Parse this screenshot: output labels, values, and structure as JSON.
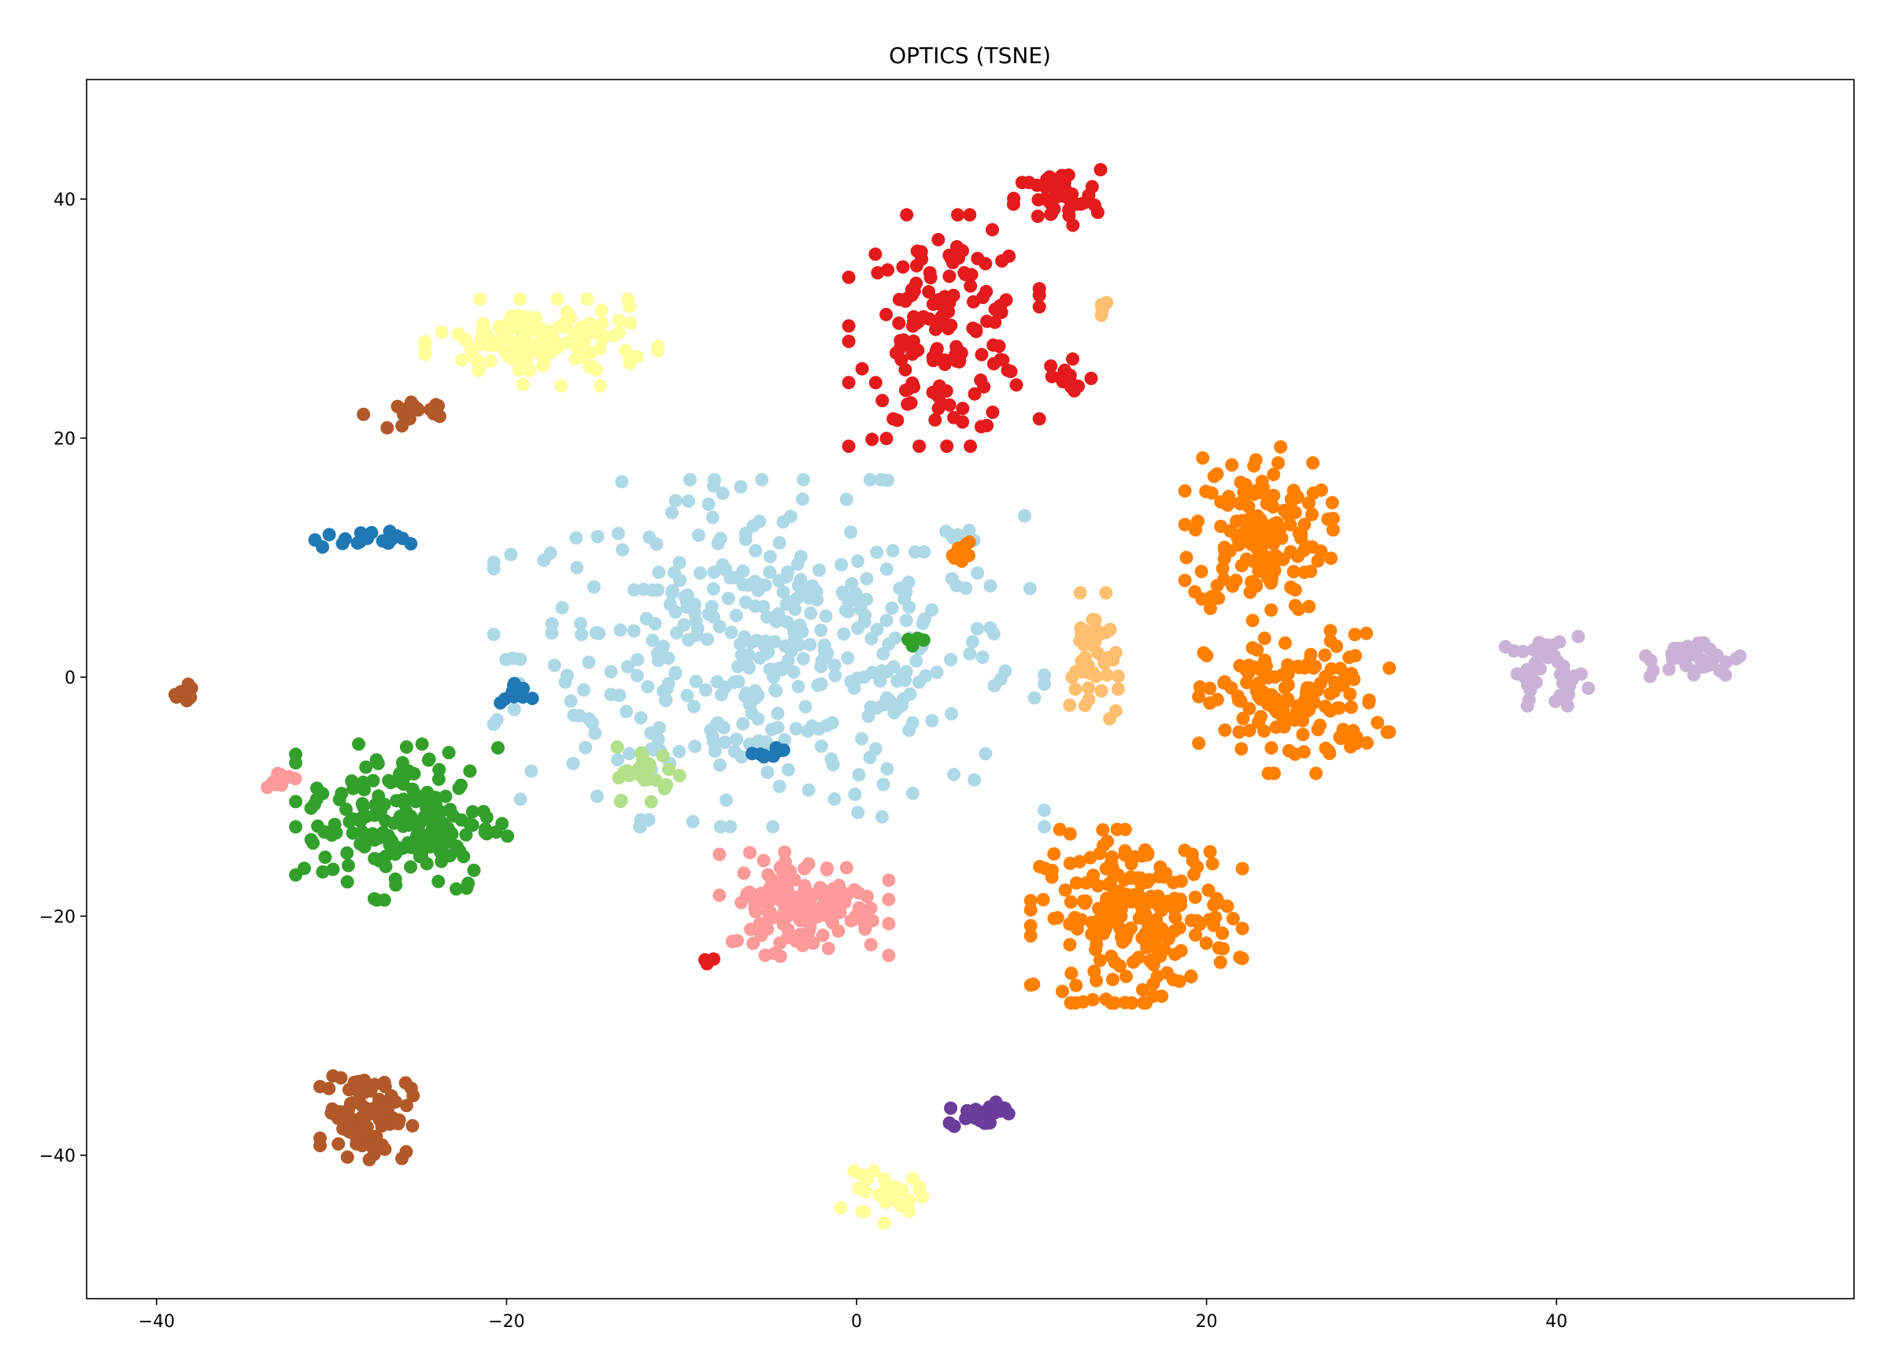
{
  "chart_data": {
    "type": "scatter",
    "title": "OPTICS (TSNE)",
    "xlabel": "",
    "ylabel": "",
    "xlim": [
      -44,
      57
    ],
    "ylim": [
      -52,
      50
    ],
    "xticks": [
      -40,
      -20,
      0,
      20,
      40
    ],
    "yticks": [
      -40,
      -20,
      0,
      20,
      40
    ],
    "grid": false,
    "legend": "none",
    "clusters": [
      {
        "color": "#add8e6",
        "center": [
          -5,
          2
        ],
        "spread": [
          13,
          12
        ],
        "count": 420
      },
      {
        "color": "#e41a1c",
        "center": [
          5,
          29
        ],
        "spread": [
          4.5,
          8
        ],
        "count": 150
      },
      {
        "color": "#e41a1c",
        "center": [
          11.5,
          40
        ],
        "spread": [
          2.2,
          2.2
        ],
        "count": 45
      },
      {
        "color": "#e41a1c",
        "center": [
          12,
          25
        ],
        "spread": [
          1.5,
          2.2
        ],
        "count": 14
      },
      {
        "color": "#e41a1c",
        "center": [
          -8,
          -23.8
        ],
        "spread": [
          1.2,
          0.4
        ],
        "count": 3
      },
      {
        "color": "#ff7f00",
        "center": [
          23,
          12
        ],
        "spread": [
          3.5,
          6
        ],
        "count": 160
      },
      {
        "color": "#ff7f00",
        "center": [
          25,
          -2
        ],
        "spread": [
          4.5,
          5
        ],
        "count": 150
      },
      {
        "color": "#ff7f00",
        "center": [
          16,
          -20
        ],
        "spread": [
          5,
          6
        ],
        "count": 230
      },
      {
        "color": "#ff7f00",
        "center": [
          6,
          10.5
        ],
        "spread": [
          0.7,
          1
        ],
        "count": 8
      },
      {
        "color": "#fdbf6f",
        "center": [
          13.5,
          1
        ],
        "spread": [
          1.2,
          5
        ],
        "count": 45
      },
      {
        "color": "#fdbf6f",
        "center": [
          14,
          31
        ],
        "spread": [
          0.6,
          0.6
        ],
        "count": 4
      },
      {
        "color": "#ffff99",
        "center": [
          -18,
          28
        ],
        "spread": [
          5.5,
          3
        ],
        "count": 130
      },
      {
        "color": "#ffff99",
        "center": [
          1.5,
          -43.5
        ],
        "spread": [
          2,
          1.8
        ],
        "count": 28
      },
      {
        "color": "#b15928",
        "center": [
          -28,
          -36.5
        ],
        "spread": [
          2.2,
          3.2
        ],
        "count": 100
      },
      {
        "color": "#b15928",
        "center": [
          -26,
          22
        ],
        "spread": [
          1.8,
          1.2
        ],
        "count": 18
      },
      {
        "color": "#b15928",
        "center": [
          -38.5,
          -1.5
        ],
        "spread": [
          0.8,
          0.8
        ],
        "count": 14
      },
      {
        "color": "#1f78b4",
        "center": [
          -28.5,
          11.5
        ],
        "spread": [
          2.5,
          0.6
        ],
        "count": 18
      },
      {
        "color": "#1f78b4",
        "center": [
          -19.5,
          -1.5
        ],
        "spread": [
          0.8,
          1.2
        ],
        "count": 12
      },
      {
        "color": "#1f78b4",
        "center": [
          -5,
          -6.3
        ],
        "spread": [
          0.8,
          0.6
        ],
        "count": 8
      },
      {
        "color": "#33a02c",
        "center": [
          -26,
          -12
        ],
        "spread": [
          5,
          5.5
        ],
        "count": 190
      },
      {
        "color": "#33a02c",
        "center": [
          3.5,
          3
        ],
        "spread": [
          0.5,
          0.5
        ],
        "count": 4
      },
      {
        "color": "#b2df8a",
        "center": [
          -12,
          -8
        ],
        "spread": [
          1.6,
          2
        ],
        "count": 28
      },
      {
        "color": "#fb9a99",
        "center": [
          -3,
          -19
        ],
        "spread": [
          4,
          3.6
        ],
        "count": 150
      },
      {
        "color": "#fb9a99",
        "center": [
          -33,
          -8.5
        ],
        "spread": [
          0.8,
          0.6
        ],
        "count": 18
      },
      {
        "color": "#6a3d9a",
        "center": [
          7,
          -36.5
        ],
        "spread": [
          1.4,
          1.1
        ],
        "count": 28
      },
      {
        "color": "#cab2d6",
        "center": [
          39.5,
          0.5
        ],
        "spread": [
          2,
          2.4
        ],
        "count": 40
      },
      {
        "color": "#cab2d6",
        "center": [
          48,
          1.5
        ],
        "spread": [
          2.4,
          1.6
        ],
        "count": 38
      }
    ]
  }
}
